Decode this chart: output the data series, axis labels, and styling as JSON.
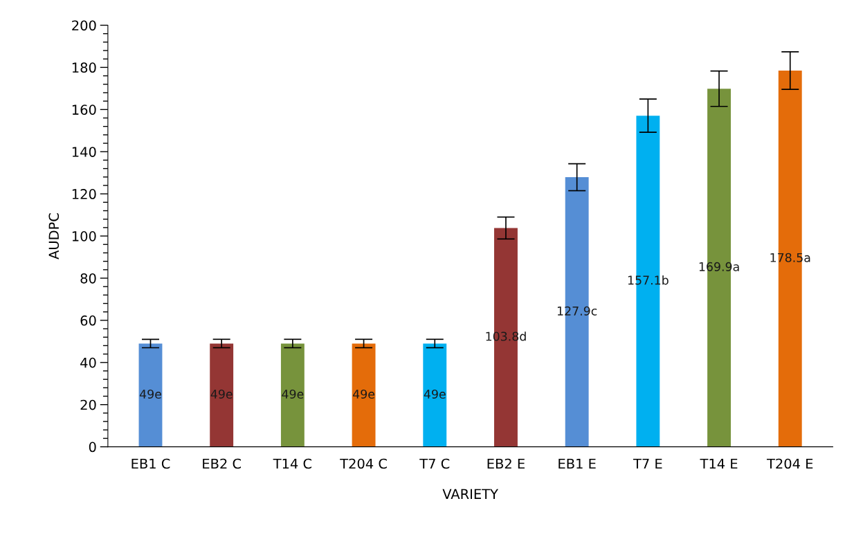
{
  "chart_data": {
    "type": "bar",
    "xlabel": "VARIETY",
    "ylabel": "AUDPC",
    "categories": [
      "EB1 C",
      "EB2 C",
      "T14 C",
      "T204 C",
      "T7 C",
      "EB2 E",
      "EB1 E",
      "T7 E",
      "T14 E",
      "T204 E"
    ],
    "values": [
      49,
      49,
      49,
      49,
      49,
      103.8,
      127.9,
      157.1,
      169.9,
      178.5
    ],
    "colors": [
      "#558ed5",
      "#943634",
      "#77933c",
      "#e46c0a",
      "#00b0f0",
      "#943634",
      "#558ed5",
      "#00b0f0",
      "#77933c",
      "#e46c0a"
    ],
    "errors": [
      2,
      2,
      2,
      2,
      2,
      5.2,
      6.4,
      7.9,
      8.4,
      8.9
    ],
    "value_labels": [
      "49e",
      "49e",
      "49e",
      "49e",
      "49e",
      "103.8d",
      "127.9c",
      "157.1b",
      "169.9a",
      "178.5a"
    ],
    "ylim": [
      0,
      200
    ],
    "yticks": [
      0,
      {
        "value": 4,
        "label": null
      },
      {
        "value": 8,
        "label": null
      },
      {
        "value": 12,
        "label": null
      },
      {
        "value": 16,
        "label": null
      },
      20,
      {
        "value": 24,
        "label": null
      },
      {
        "value": 28,
        "label": null
      },
      {
        "value": 32,
        "label": null
      },
      {
        "value": 36,
        "label": null
      },
      40,
      {
        "value": 44,
        "label": null
      },
      {
        "value": 48,
        "label": null
      },
      {
        "value": 52,
        "label": null
      },
      {
        "value": 56,
        "label": null
      },
      60,
      {
        "value": 64,
        "label": null
      },
      {
        "value": 68,
        "label": null
      },
      {
        "value": 72,
        "label": null
      },
      {
        "value": 76,
        "label": null
      },
      80,
      {
        "value": 84,
        "label": null
      },
      {
        "value": 88,
        "label": null
      },
      {
        "value": 92,
        "label": null
      },
      {
        "value": 96,
        "label": null
      },
      100,
      {
        "value": 104,
        "label": null
      },
      {
        "value": 108,
        "label": null
      },
      {
        "value": 112,
        "label": null
      },
      {
        "value": 116,
        "label": null
      },
      120,
      {
        "value": 124,
        "label": null
      },
      {
        "value": 128,
        "label": null
      },
      {
        "value": 132,
        "label": null
      },
      {
        "value": 136,
        "label": null
      },
      140,
      {
        "value": 144,
        "label": null
      },
      {
        "value": 148,
        "label": null
      },
      {
        "value": 152,
        "label": null
      },
      {
        "value": 156,
        "label": null
      },
      160,
      {
        "value": 164,
        "label": null
      },
      {
        "value": 168,
        "label": null
      },
      {
        "value": 172,
        "label": null
      },
      {
        "value": 176,
        "label": null
      },
      180,
      {
        "value": 184,
        "label": null
      },
      {
        "value": 188,
        "label": null
      },
      {
        "value": 192,
        "label": null
      },
      {
        "value": 196,
        "label": null
      },
      200
    ],
    "grid": false
  }
}
